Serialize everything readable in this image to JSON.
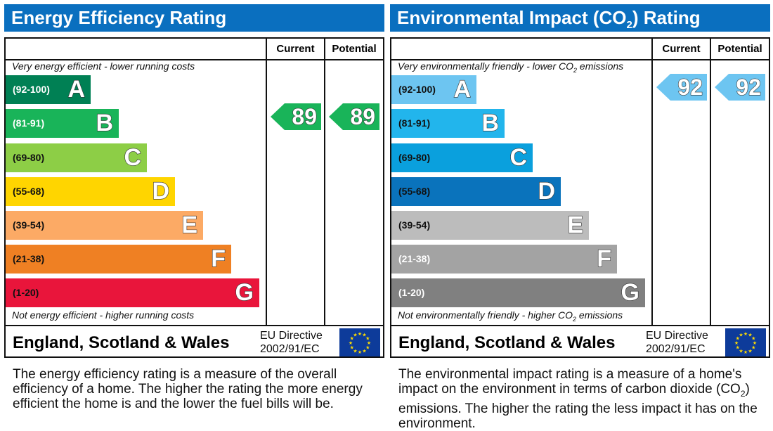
{
  "chart_data": [
    {
      "type": "bar",
      "title": "Energy Efficiency Rating",
      "columns": [
        "Current",
        "Potential"
      ],
      "top_note": "Very energy efficient - lower running costs",
      "bottom_note": "Not energy efficient - higher running costs",
      "bands": [
        {
          "letter": "A",
          "range": "(92-100)",
          "color": "#008054",
          "text": "#fff"
        },
        {
          "letter": "B",
          "range": "(81-91)",
          "color": "#19b459",
          "text": "#fff"
        },
        {
          "letter": "C",
          "range": "(69-80)",
          "color": "#8dce46",
          "text": "#111"
        },
        {
          "letter": "D",
          "range": "(55-68)",
          "color": "#ffd500",
          "text": "#111"
        },
        {
          "letter": "E",
          "range": "(39-54)",
          "color": "#fcaa65",
          "text": "#111"
        },
        {
          "letter": "F",
          "range": "(21-38)",
          "color": "#ef8023",
          "text": "#111"
        },
        {
          "letter": "G",
          "range": "(1-20)",
          "color": "#e9153b",
          "text": "#111"
        }
      ],
      "current": {
        "value": 89,
        "band": "B",
        "color": "#19b459"
      },
      "potential": {
        "value": 89,
        "band": "B",
        "color": "#19b459"
      },
      "footer": {
        "country": "England, Scotland & Wales",
        "directive_line1": "EU Directive",
        "directive_line2": "2002/91/EC"
      },
      "description": "The energy efficiency rating is a measure of the overall efficiency of a home. The higher the rating the more energy efficient the home is and the lower the fuel bills will be."
    },
    {
      "type": "bar",
      "title": "Environmental Impact (CO2) Rating",
      "columns": [
        "Current",
        "Potential"
      ],
      "top_note": "Very environmentally friendly - lower CO2 emissions",
      "bottom_note": "Not environmentally friendly - higher CO2 emissions",
      "bands": [
        {
          "letter": "A",
          "range": "(92-100)",
          "color": "#6dc5f1",
          "text": "#111"
        },
        {
          "letter": "B",
          "range": "(81-91)",
          "color": "#22b5ec",
          "text": "#111"
        },
        {
          "letter": "C",
          "range": "(69-80)",
          "color": "#0aa0dd",
          "text": "#111"
        },
        {
          "letter": "D",
          "range": "(55-68)",
          "color": "#0a73bc",
          "text": "#111"
        },
        {
          "letter": "E",
          "range": "(39-54)",
          "color": "#bcbcbc",
          "text": "#111"
        },
        {
          "letter": "F",
          "range": "(21-38)",
          "color": "#a3a3a3",
          "text": "#fff"
        },
        {
          "letter": "G",
          "range": "(1-20)",
          "color": "#808080",
          "text": "#fff"
        }
      ],
      "current": {
        "value": 92,
        "band": "A",
        "color": "#6dc5f1"
      },
      "potential": {
        "value": 92,
        "band": "A",
        "color": "#6dc5f1"
      },
      "footer": {
        "country": "England, Scotland & Wales",
        "directive_line1": "EU Directive",
        "directive_line2": "2002/91/EC"
      },
      "description": "The environmental impact rating is a measure of a home's impact on the environment in terms of carbon dioxide (CO2) emissions. The higher the rating the less impact it has on the environment."
    }
  ]
}
